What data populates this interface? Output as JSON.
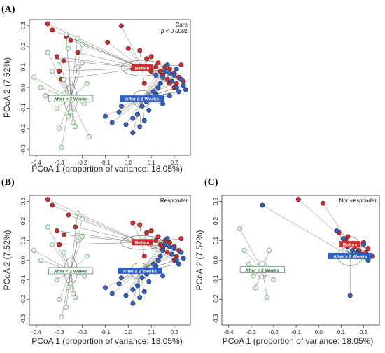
{
  "chart_data": [
    {
      "panel": "(A)",
      "type": "scatter",
      "xlabel": "PCoA 1 (proportion of variance: 18.05%)",
      "ylabel": "PCoA 2 (7.52%)",
      "xlim": [
        -0.43,
        0.27
      ],
      "ylim": [
        -0.33,
        0.33
      ],
      "xticks": [
        -0.4,
        -0.3,
        -0.2,
        -0.1,
        0.0,
        0.1,
        0.2
      ],
      "yticks": [
        -0.3,
        -0.2,
        -0.1,
        0.0,
        0.1,
        0.2,
        0.3
      ],
      "annotations": [
        "Care",
        "p < 0.0001"
      ],
      "series": [
        {
          "name": "Before",
          "color": "#d42a2a",
          "centroid": [
            0.06,
            0.095
          ],
          "x": [
            -0.35,
            -0.33,
            -0.27,
            -0.25,
            -0.22,
            -0.31,
            -0.3,
            -0.29,
            -0.28,
            -0.09,
            -0.03,
            0.0,
            0.02,
            0.05,
            0.08,
            0.1,
            0.12,
            0.14,
            0.15,
            0.17,
            0.18,
            0.19,
            0.2,
            0.21,
            0.22,
            0.23,
            0.24,
            0.07,
            0.1,
            0.13,
            0.16,
            0.18,
            0.2,
            0.22
          ],
          "y": [
            0.31,
            0.28,
            0.25,
            0.23,
            0.17,
            0.15,
            0.08,
            0.04,
            0.13,
            0.22,
            0.3,
            0.19,
            0.09,
            0.18,
            0.14,
            0.15,
            0.1,
            0.08,
            0.06,
            0.04,
            0.09,
            0.03,
            0.07,
            0.02,
            0.05,
            0.11,
            0.03,
            0.02,
            0.08,
            0.12,
            0.1,
            0.02,
            0.0,
            0.05
          ]
        },
        {
          "name": "After ≥ 2 Weeks",
          "color": "#2e5fc2",
          "centroid": [
            0.06,
            -0.055
          ],
          "x": [
            -0.1,
            -0.07,
            -0.04,
            -0.01,
            0.02,
            0.04,
            0.06,
            0.08,
            0.1,
            0.12,
            0.13,
            0.14,
            0.15,
            0.16,
            0.17,
            0.18,
            0.19,
            0.2,
            0.21,
            0.22,
            0.23,
            0.24,
            0.25,
            0.14,
            0.18,
            0.09,
            0.05,
            -0.03,
            0.02,
            0.12,
            0.15,
            0.11,
            0.07,
            0.21
          ],
          "y": [
            -0.14,
            -0.17,
            -0.12,
            -0.18,
            -0.22,
            -0.13,
            -0.09,
            -0.07,
            -0.05,
            -0.03,
            0.0,
            0.02,
            0.05,
            0.08,
            0.11,
            0.07,
            0.03,
            0.06,
            0.0,
            -0.02,
            0.04,
            0.01,
            -0.01,
            -0.06,
            -0.04,
            -0.11,
            -0.19,
            -0.09,
            -0.15,
            0.06,
            -0.08,
            -0.02,
            -0.16,
            0.09
          ]
        },
        {
          "name": "After < 2 Weeks",
          "color": "#7fbf7f",
          "centroid": [
            -0.25,
            -0.055
          ],
          "x": [
            -0.41,
            -0.38,
            -0.36,
            -0.35,
            -0.33,
            -0.31,
            -0.3,
            -0.29,
            -0.28,
            -0.27,
            -0.26,
            -0.25,
            -0.24,
            -0.23,
            -0.22,
            -0.21,
            -0.2,
            -0.19,
            -0.18,
            -0.17,
            -0.3,
            -0.28,
            -0.26,
            -0.22,
            -0.2
          ],
          "y": [
            0.05,
            0.0,
            -0.04,
            0.17,
            0.08,
            -0.1,
            -0.2,
            -0.29,
            0.04,
            0.26,
            0.19,
            -0.12,
            -0.17,
            -0.19,
            0.24,
            -0.06,
            0.12,
            -0.08,
            0.02,
            -0.24,
            0.13,
            -0.03,
            -0.14,
            0.1,
            0.21
          ]
        }
      ]
    },
    {
      "panel": "(B)",
      "type": "scatter",
      "xlabel": "PCoA 1 (proportion of variance: 18.05%)",
      "ylabel": "PCoA 2 (7.52%)",
      "xlim": [
        -0.43,
        0.27
      ],
      "ylim": [
        -0.33,
        0.33
      ],
      "xticks": [
        -0.4,
        -0.3,
        -0.2,
        -0.1,
        0.0,
        0.1,
        0.2
      ],
      "yticks": [
        -0.3,
        -0.2,
        -0.1,
        0.0,
        0.1,
        0.2,
        0.3
      ],
      "annotations": [
        "Responder"
      ],
      "series": [
        {
          "name": "Before",
          "color": "#d42a2a",
          "centroid": [
            0.06,
            0.09
          ],
          "x": [
            -0.35,
            -0.33,
            -0.26,
            -0.23,
            -0.31,
            -0.3,
            -0.28,
            0.02,
            0.05,
            0.08,
            0.1,
            0.12,
            0.14,
            0.15,
            0.17,
            0.18,
            0.19,
            0.2,
            0.21,
            0.22,
            0.23,
            0.07,
            0.13,
            0.16,
            0.2
          ],
          "y": [
            0.31,
            0.28,
            0.23,
            0.17,
            0.15,
            0.08,
            0.13,
            0.19,
            0.18,
            0.14,
            0.15,
            0.1,
            0.08,
            0.06,
            0.04,
            0.09,
            0.03,
            0.07,
            0.02,
            0.05,
            0.11,
            0.02,
            0.12,
            0.1,
            0.0
          ]
        },
        {
          "name": "After ≥ 2 Weeks",
          "color": "#2e5fc2",
          "centroid": [
            0.05,
            -0.055
          ],
          "x": [
            -0.1,
            -0.07,
            -0.04,
            -0.01,
            0.02,
            0.04,
            0.06,
            0.08,
            0.1,
            0.12,
            0.13,
            0.14,
            0.15,
            0.16,
            0.17,
            0.18,
            0.19,
            0.2,
            0.21,
            0.22,
            0.23,
            0.24,
            0.09,
            0.05,
            -0.03,
            0.02,
            0.15,
            0.11,
            0.07
          ],
          "y": [
            -0.14,
            -0.17,
            -0.12,
            -0.18,
            -0.22,
            -0.13,
            -0.09,
            -0.07,
            -0.05,
            -0.03,
            0.0,
            0.02,
            0.05,
            0.08,
            0.11,
            0.07,
            0.03,
            0.06,
            0.0,
            -0.02,
            0.04,
            0.01,
            -0.11,
            -0.19,
            -0.09,
            -0.15,
            -0.08,
            -0.02,
            -0.16
          ]
        },
        {
          "name": "After < 2 Weeks",
          "color": "#7fbf7f",
          "centroid": [
            -0.25,
            -0.055
          ],
          "x": [
            -0.41,
            -0.38,
            -0.35,
            -0.33,
            -0.31,
            -0.3,
            -0.29,
            -0.28,
            -0.27,
            -0.25,
            -0.24,
            -0.23,
            -0.22,
            -0.21,
            -0.2,
            -0.19,
            -0.18,
            -0.26,
            -0.22,
            -0.2
          ],
          "y": [
            0.05,
            0.0,
            0.17,
            0.08,
            -0.1,
            -0.2,
            -0.29,
            0.04,
            -0.24,
            -0.12,
            -0.17,
            -0.19,
            0.24,
            -0.06,
            0.12,
            -0.08,
            0.02,
            -0.14,
            0.1,
            0.21
          ]
        }
      ]
    },
    {
      "panel": "(C)",
      "type": "scatter",
      "xlabel": "PCoA 1 (proportion of variance: 18.05%)",
      "ylabel": "PCoA 2 (7.52%)",
      "xlim": [
        -0.43,
        0.27
      ],
      "ylim": [
        -0.33,
        0.33
      ],
      "xticks": [
        -0.4,
        -0.3,
        -0.2,
        -0.1,
        0.0,
        0.1,
        0.2
      ],
      "yticks": [
        -0.3,
        -0.2,
        -0.1,
        0.0,
        0.1,
        0.2,
        0.3
      ],
      "annotations": [
        "Non-responder"
      ],
      "series": [
        {
          "name": "Before",
          "color": "#d42a2a",
          "centroid": [
            0.14,
            0.08
          ],
          "x": [
            -0.09,
            0.02,
            0.09,
            0.12,
            0.14,
            0.16,
            0.18,
            0.2,
            0.21,
            0.22,
            0.24,
            0.13
          ],
          "y": [
            0.31,
            0.29,
            0.14,
            0.1,
            0.08,
            0.07,
            0.05,
            0.09,
            0.04,
            0.06,
            0.02,
            0.12
          ]
        },
        {
          "name": "After ≥ 2 Weeks",
          "color": "#2e5fc2",
          "centroid": [
            0.14,
            0.02
          ],
          "x": [
            -0.25,
            0.08,
            0.11,
            0.13,
            0.15,
            0.17,
            0.19,
            0.2,
            0.22,
            0.14,
            0.16
          ],
          "y": [
            0.28,
            0.15,
            0.11,
            0.07,
            0.05,
            0.04,
            0.03,
            0.08,
            0.0,
            -0.18,
            0.02
          ]
        },
        {
          "name": "After < 2 Weeks",
          "color": "#7fbf7f",
          "centroid": [
            -0.25,
            -0.05
          ],
          "x": [
            -0.35,
            -0.33,
            -0.31,
            -0.29,
            -0.28,
            -0.23,
            -0.22,
            -0.2,
            -0.24
          ],
          "y": [
            0.16,
            0.05,
            -0.02,
            -0.08,
            -0.14,
            -0.19,
            0.05,
            -0.1,
            -0.07
          ]
        }
      ]
    }
  ]
}
